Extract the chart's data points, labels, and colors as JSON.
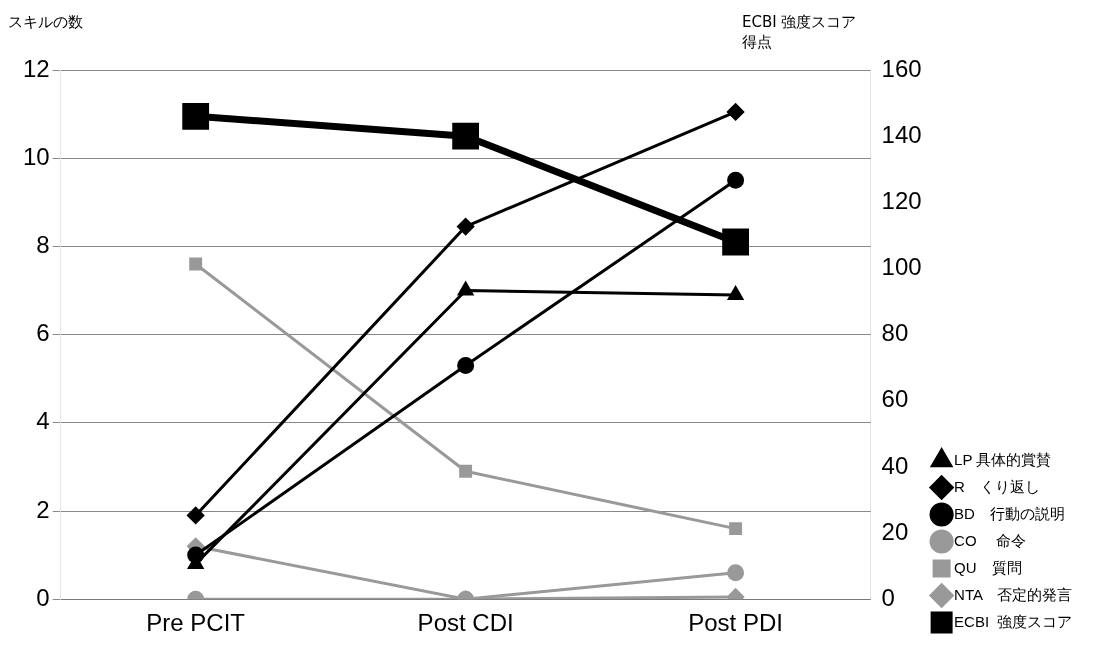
{
  "chart_data": {
    "type": "line",
    "ylabel": "スキルの数",
    "y2label": "ECBI 強度スコア得点",
    "categories": [
      "Pre PCIT",
      "Post CDI",
      "Post PDI"
    ],
    "ylim": [
      0,
      12
    ],
    "yticks": [
      0,
      2,
      4,
      6,
      8,
      10,
      12
    ],
    "y2lim": [
      0,
      160
    ],
    "y2ticks": [
      0,
      20,
      40,
      60,
      80,
      100,
      120,
      140,
      160
    ],
    "grid": "y",
    "legend": "right",
    "line_style": "solid",
    "series": [
      {
        "name": "LP 具体的賞賛",
        "color": "#000000",
        "marker": "triangle",
        "values": [
          0.8,
          7.0,
          6.9
        ]
      },
      {
        "name": "R　くり返し",
        "color": "#000000",
        "marker": "diamond",
        "values": [
          1.9,
          8.45,
          11.05
        ]
      },
      {
        "name": "BD　行動の説明",
        "color": "#000000",
        "marker": "circle",
        "values": [
          1.0,
          5.3,
          9.5
        ]
      },
      {
        "name": "CO　 命令",
        "color": "#999999",
        "marker": "circle",
        "values": [
          0,
          0,
          0.6
        ]
      },
      {
        "name": "QU　質問",
        "color": "#999999",
        "marker": "square",
        "values": [
          7.6,
          2.9,
          1.6
        ]
      },
      {
        "name": "NTA　否定的発言",
        "color": "#999999",
        "marker": "diamond",
        "values": [
          1.2,
          0,
          0.05
        ]
      },
      {
        "name": "ECBI  強度スコア",
        "color": "#000000",
        "marker": "square",
        "axis": "y2",
        "values": [
          146,
          140,
          108
        ]
      }
    ]
  }
}
